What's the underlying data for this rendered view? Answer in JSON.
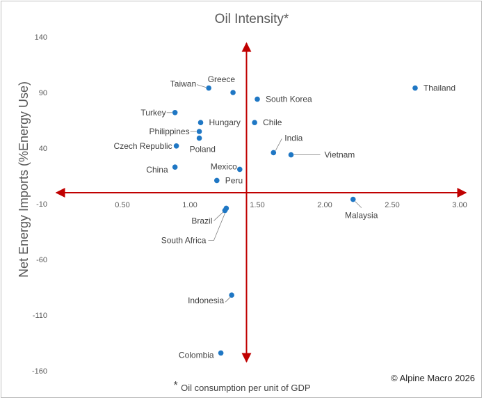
{
  "chart_data": {
    "type": "scatter",
    "title": "Oil Intensity*",
    "xlabel_star": "*",
    "xlabel": "Oil consumption per unit of GDP",
    "ylabel": "Net Energy Imports (%Energy Use)",
    "xlim": [
      0.0,
      3.0
    ],
    "ylim": [
      -160,
      140
    ],
    "x_ticks": [
      "0.50",
      "1.00",
      "1.50",
      "2.00",
      "2.50",
      "3.00"
    ],
    "y_ticks": [
      "140",
      "90",
      "40",
      "-10",
      "-60",
      "-110",
      "-160"
    ],
    "x_tick_values": [
      0.5,
      1.0,
      1.5,
      2.0,
      2.5,
      3.0
    ],
    "y_tick_values": [
      140,
      90,
      40,
      -10,
      -60,
      -110,
      -160
    ],
    "axis_cross": {
      "x": 1.42,
      "y": 0
    },
    "marker_color": "#1f77c4",
    "axis_color": "#c00000",
    "grid": false,
    "points": [
      {
        "label": "Greece",
        "x": 1.32,
        "y": 90
      },
      {
        "label": "Taiwan",
        "x": 1.14,
        "y": 94
      },
      {
        "label": "South Korea",
        "x": 1.5,
        "y": 84
      },
      {
        "label": "Thailand",
        "x": 2.67,
        "y": 94
      },
      {
        "label": "Turkey",
        "x": 0.89,
        "y": 72
      },
      {
        "label": "Hungary",
        "x": 1.08,
        "y": 63
      },
      {
        "label": "Chile",
        "x": 1.48,
        "y": 63
      },
      {
        "label": "Philippines",
        "x": 1.07,
        "y": 55
      },
      {
        "label": "Poland",
        "x": 1.07,
        "y": 49
      },
      {
        "label": "Czech Republic",
        "x": 0.9,
        "y": 42
      },
      {
        "label": "India",
        "x": 1.62,
        "y": 36
      },
      {
        "label": "Vietnam",
        "x": 1.75,
        "y": 34
      },
      {
        "label": "Mexico",
        "x": 1.37,
        "y": 21
      },
      {
        "label": "China",
        "x": 0.89,
        "y": 23
      },
      {
        "label": "Peru",
        "x": 1.2,
        "y": 11
      },
      {
        "label": "Malaysia",
        "x": 2.21,
        "y": -6
      },
      {
        "label": "Brazil",
        "x": 1.27,
        "y": -14
      },
      {
        "label": "South Africa",
        "x": 1.26,
        "y": -16
      },
      {
        "label": "Indonesia",
        "x": 1.31,
        "y": -92
      },
      {
        "label": "Colombia",
        "x": 1.23,
        "y": -144
      }
    ]
  },
  "copyright": "© Alpine Macro 2026"
}
